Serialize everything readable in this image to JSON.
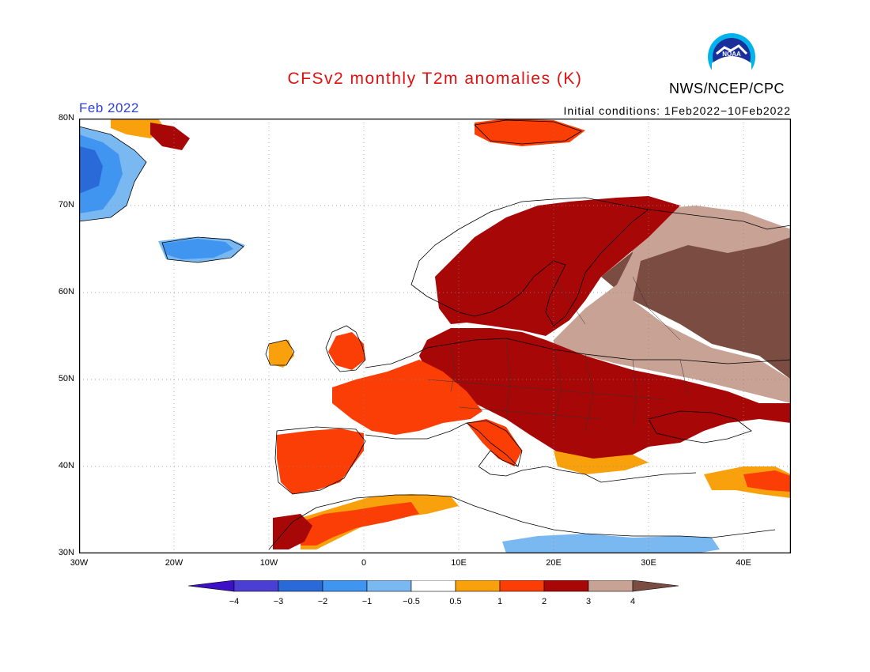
{
  "header": {
    "title": "CFSv2 monthly T2m anomalies (K)",
    "org": "NWS/NCEP/CPC",
    "logo_text": "NOAA",
    "month": "Feb 2022",
    "initial_conditions": "Initial conditions: 1Feb2022−10Feb2022"
  },
  "axes": {
    "lat_labels": [
      "80N",
      "70N",
      "60N",
      "50N",
      "40N",
      "30N"
    ],
    "lon_labels": [
      "30W",
      "20W",
      "10W",
      "0",
      "10E",
      "20E",
      "30E",
      "40E"
    ],
    "lon_range": [
      -30,
      45
    ],
    "lat_range": [
      30,
      80
    ],
    "grid": "dotted"
  },
  "colorbar": {
    "tick_labels": [
      "−4",
      "−3",
      "−2",
      "−1",
      "−0.5",
      "0.5",
      "1",
      "2",
      "3",
      "4"
    ],
    "colors": [
      "#3d10c8",
      "#4a3fd2",
      "#2a6ad8",
      "#3f95f0",
      "#7ab8f2",
      "#ffffff",
      "#f9a00d",
      "#fb3e05",
      "#a80707",
      "#c8a295",
      "#7a4c42"
    ]
  },
  "regions": [
    {
      "name": "Iberia",
      "level": "1 to 2"
    },
    {
      "name": "France",
      "level": "1 to 2"
    },
    {
      "name": "Central Europe",
      "level": "2 to 3"
    },
    {
      "name": "Scandinavia",
      "level": "2 to 3"
    },
    {
      "name": "Western Russia",
      "level": "above 4"
    },
    {
      "name": "Greenland coast",
      "level": "-2 to -3"
    },
    {
      "name": "Iceland",
      "level": "-1 to -2"
    },
    {
      "name": "North Africa",
      "level": "0.5 to 3"
    },
    {
      "name": "Eastern Mediterranean",
      "level": "-0.5 to -1"
    }
  ]
}
